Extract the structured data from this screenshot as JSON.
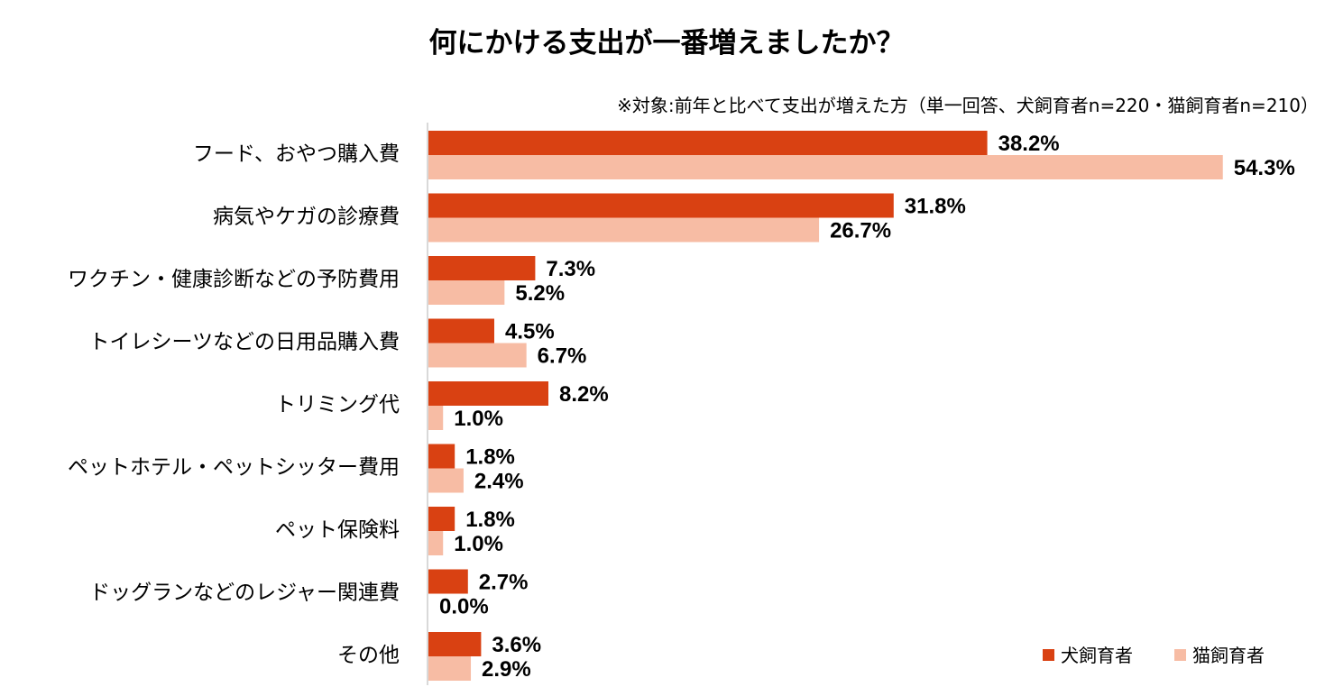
{
  "chart_data": {
    "type": "bar",
    "orientation": "horizontal",
    "title": "何にかける支出が一番増えましたか？",
    "subtitle": "※対象:前年と比べて支出が増えた方（単一回答、犬飼育者n=220・猫飼育者n=210）",
    "categories": [
      "フード、おやつ購入費",
      "病気やケガの診療費",
      "ワクチン・健康診断などの予防費用",
      "トイレシーツなどの日用品購入費",
      "トリミング代",
      "ペットホテル・ペットシッター費用",
      "ペット保険料",
      "ドッグランなどのレジャー関連費",
      "その他"
    ],
    "series": [
      {
        "name": "犬飼育者",
        "color": "#D94112",
        "values": [
          38.2,
          31.8,
          7.3,
          4.5,
          8.2,
          1.8,
          1.8,
          2.7,
          3.6
        ],
        "labels": [
          "38.2%",
          "31.8%",
          "7.3%",
          "4.5%",
          "8.2%",
          "1.8%",
          "1.8%",
          "2.7%",
          "3.6%"
        ]
      },
      {
        "name": "猫飼育者",
        "color": "#F7BCA4",
        "values": [
          54.3,
          26.7,
          5.2,
          6.7,
          1.0,
          2.4,
          1.0,
          0.0,
          2.9
        ],
        "labels": [
          "54.3%",
          "26.7%",
          "5.2%",
          "6.7%",
          "1.0%",
          "2.4%",
          "1.0%",
          "0.0%",
          "2.9%"
        ]
      }
    ],
    "unit": "%",
    "xlim": [
      0,
      60
    ],
    "grid": false,
    "legend_position": "bottom-right",
    "axis_color": "#D9D9D9"
  }
}
